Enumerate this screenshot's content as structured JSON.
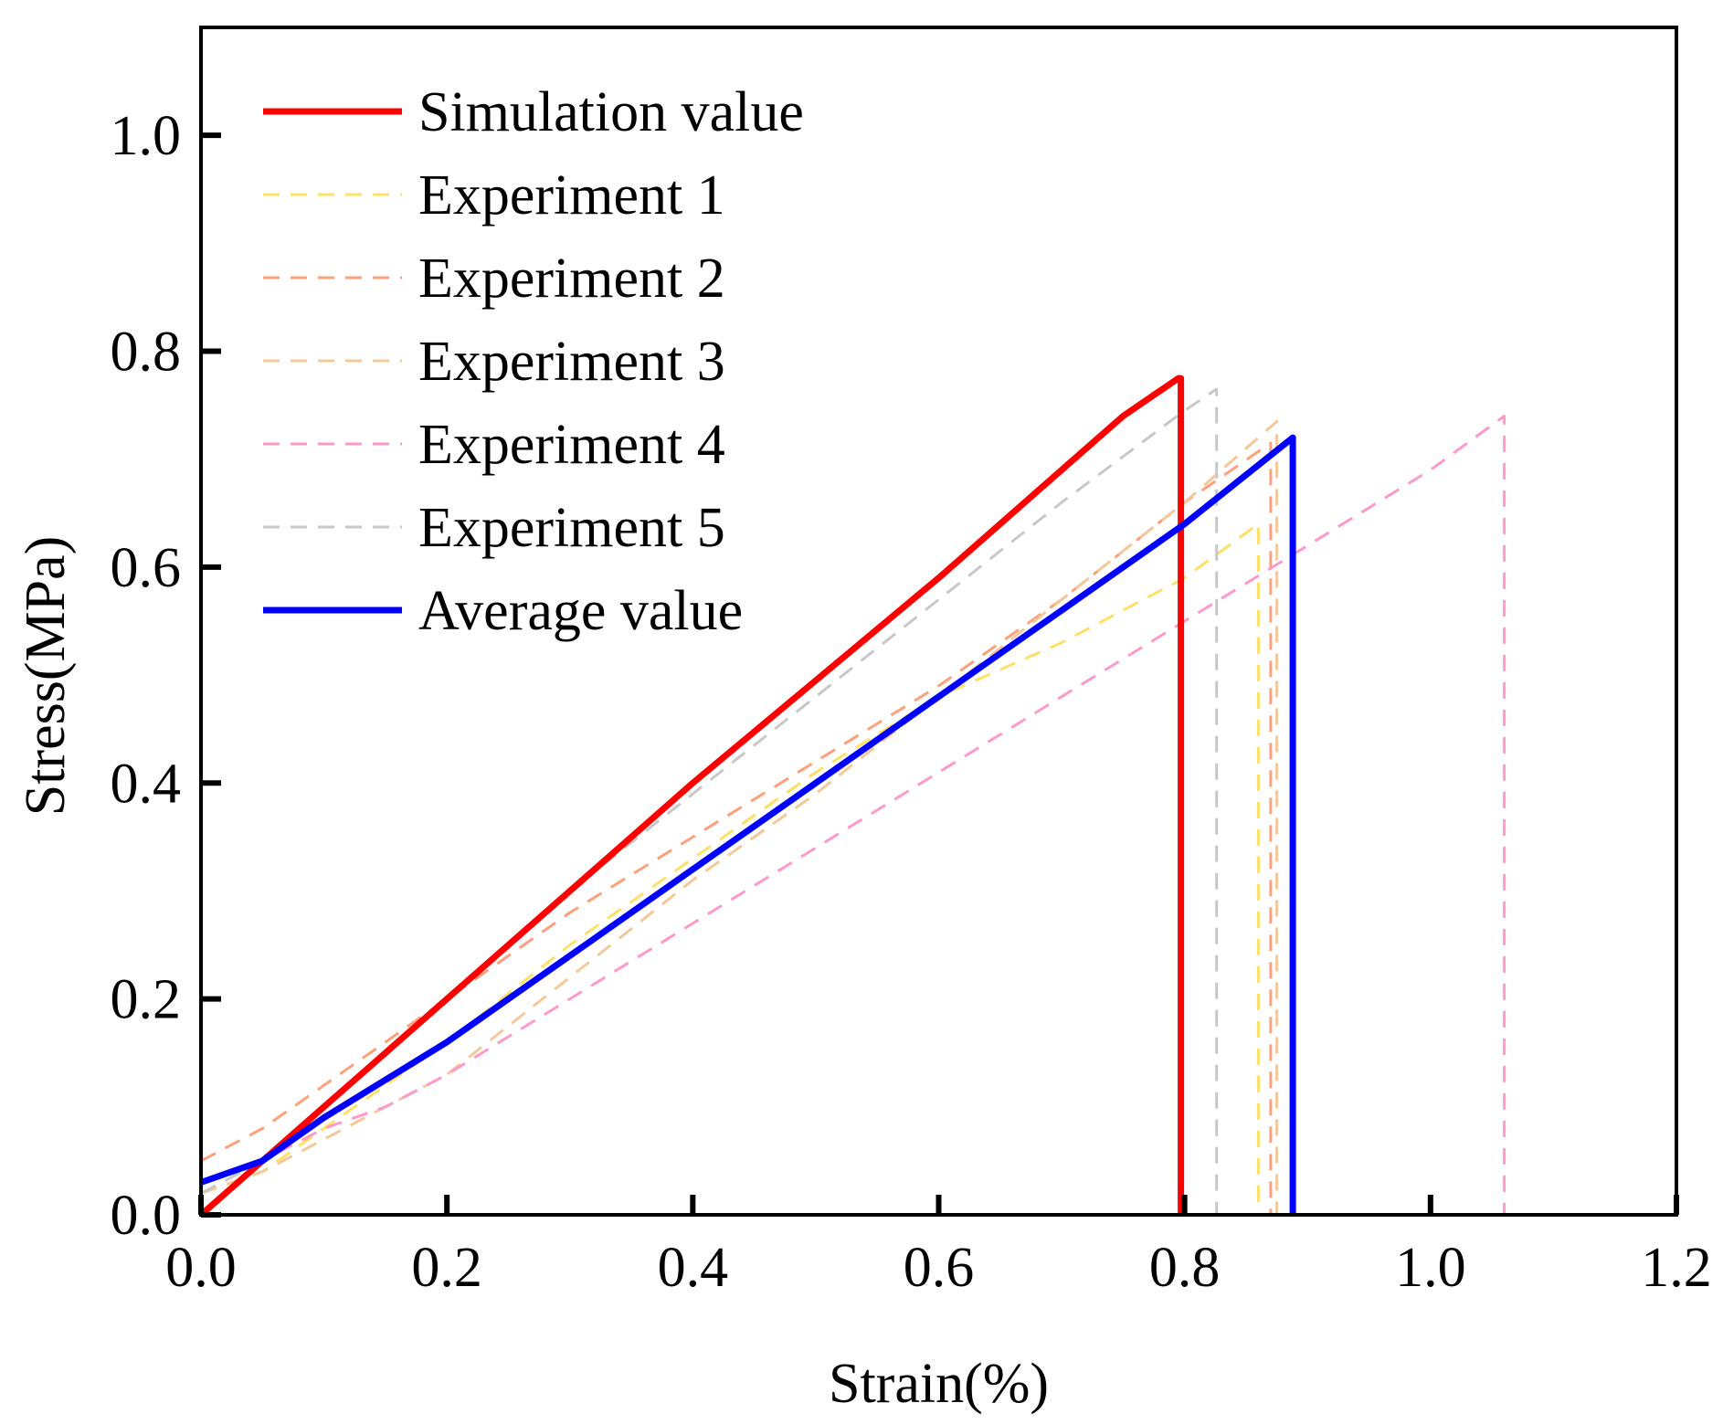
{
  "chart_data": {
    "type": "line",
    "title": "",
    "xlabel": "Strain(%)",
    "ylabel": "Stress(MPa)",
    "xlim": [
      0.0,
      1.2
    ],
    "ylim": [
      0.0,
      1.1
    ],
    "xticks": [
      0.0,
      0.2,
      0.4,
      0.6,
      0.8,
      1.0,
      1.2
    ],
    "xtick_labels": [
      "0.0",
      "0.2",
      "0.4",
      "0.6",
      "0.8",
      "1.0",
      "1.2"
    ],
    "yticks": [
      0.0,
      0.2,
      0.4,
      0.6,
      0.8,
      1.0
    ],
    "ytick_labels": [
      "0.0",
      "0.2",
      "0.4",
      "0.6",
      "0.8",
      "1.0"
    ],
    "grid": false,
    "legend_position": "top-left",
    "series": [
      {
        "name": "Simulation value",
        "color": "#ff0000",
        "style": "solid",
        "x": [
          0.0,
          0.05,
          0.1,
          0.15,
          0.2,
          0.3,
          0.4,
          0.5,
          0.6,
          0.7,
          0.75,
          0.795,
          0.797,
          0.797
        ],
        "y": [
          0.0,
          0.05,
          0.1,
          0.15,
          0.2,
          0.3,
          0.4,
          0.495,
          0.59,
          0.69,
          0.74,
          0.775,
          0.775,
          0.0
        ]
      },
      {
        "name": "Experiment 1",
        "color": "#ffe066",
        "style": "dashed",
        "x": [
          0.0,
          0.05,
          0.1,
          0.2,
          0.3,
          0.4,
          0.5,
          0.6,
          0.7,
          0.8,
          0.86,
          0.86
        ],
        "y": [
          0.02,
          0.04,
          0.08,
          0.16,
          0.25,
          0.33,
          0.41,
          0.48,
          0.53,
          0.59,
          0.64,
          0.0
        ]
      },
      {
        "name": "Experiment 2",
        "color": "#ffa07a",
        "style": "dashed",
        "x": [
          0.0,
          0.05,
          0.1,
          0.2,
          0.3,
          0.4,
          0.5,
          0.6,
          0.7,
          0.8,
          0.87,
          0.87
        ],
        "y": [
          0.05,
          0.08,
          0.12,
          0.2,
          0.28,
          0.35,
          0.42,
          0.49,
          0.57,
          0.66,
          0.715,
          0.0
        ]
      },
      {
        "name": "Experiment 3",
        "color": "#f5c89a",
        "style": "dashed",
        "x": [
          0.0,
          0.05,
          0.1,
          0.2,
          0.3,
          0.4,
          0.5,
          0.6,
          0.7,
          0.8,
          0.875,
          0.875
        ],
        "y": [
          0.02,
          0.04,
          0.07,
          0.13,
          0.22,
          0.31,
          0.39,
          0.48,
          0.57,
          0.66,
          0.735,
          0.0
        ]
      },
      {
        "name": "Experiment 4",
        "color": "#ff99cc",
        "style": "dashed",
        "x": [
          0.0,
          0.05,
          0.1,
          0.15,
          0.2,
          0.3,
          0.4,
          0.5,
          0.6,
          0.7,
          0.8,
          0.9,
          1.0,
          1.06,
          1.06
        ],
        "y": [
          0.03,
          0.05,
          0.08,
          0.1,
          0.13,
          0.2,
          0.27,
          0.34,
          0.41,
          0.48,
          0.55,
          0.62,
          0.69,
          0.74,
          0.0
        ]
      },
      {
        "name": "Experiment 5",
        "color": "#c8c8c8",
        "style": "dashed",
        "x": [
          0.0,
          0.05,
          0.1,
          0.2,
          0.3,
          0.4,
          0.5,
          0.6,
          0.7,
          0.8,
          0.826,
          0.826
        ],
        "y": [
          0.02,
          0.05,
          0.1,
          0.2,
          0.3,
          0.39,
          0.48,
          0.57,
          0.66,
          0.745,
          0.765,
          0.0
        ]
      },
      {
        "name": "Average value",
        "color": "#0000ff",
        "style": "solid",
        "x": [
          0.0,
          0.05,
          0.1,
          0.2,
          0.3,
          0.4,
          0.5,
          0.6,
          0.7,
          0.8,
          0.888,
          0.888
        ],
        "y": [
          0.03,
          0.05,
          0.09,
          0.16,
          0.24,
          0.32,
          0.4,
          0.48,
          0.56,
          0.64,
          0.72,
          0.0
        ]
      }
    ]
  }
}
